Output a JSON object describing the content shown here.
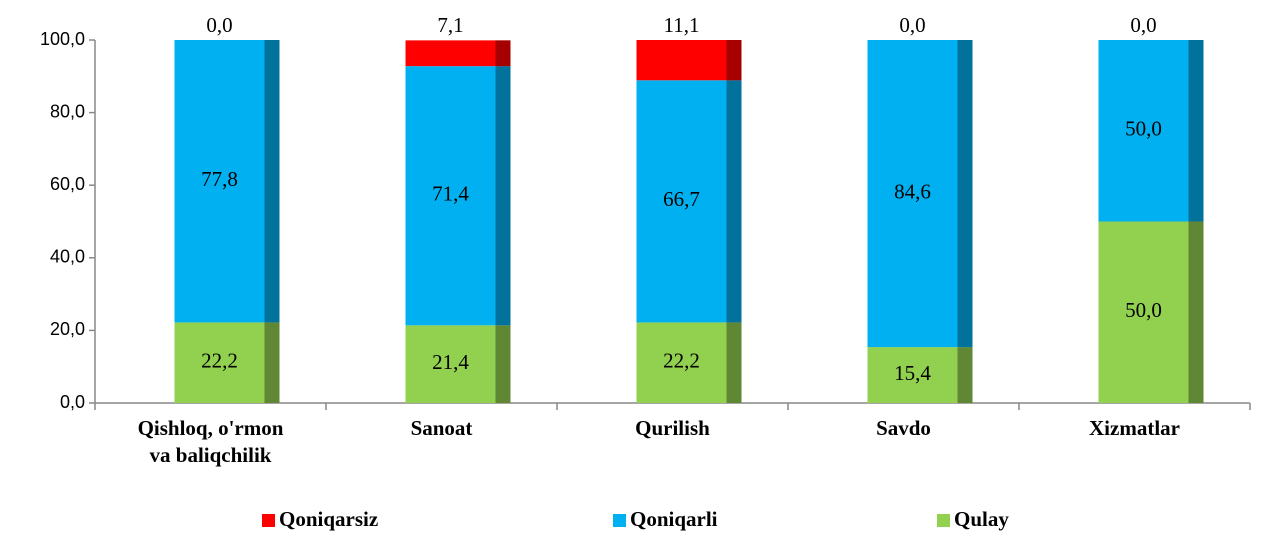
{
  "chart_data": {
    "type": "stacked_bar",
    "categories": [
      "Qishloq, o'rmon\nva baliqchilik",
      "Sanoat",
      "Qurilish",
      "Savdo",
      "Xizmatlar"
    ],
    "series": [
      {
        "name": "Qoniqarsiz",
        "color": "#ff0000",
        "values": [
          0,
          7.1,
          11.1,
          0,
          0
        ],
        "value_labels": [
          "0,0",
          "7,1",
          "11,1",
          "0,0",
          "0,0"
        ]
      },
      {
        "name": "Qoniqarli",
        "color": "#00b0f0",
        "values": [
          77.8,
          71.4,
          66.7,
          84.6,
          50
        ],
        "value_labels": [
          "77,8",
          "71,4",
          "66,7",
          "84,6",
          "50,0"
        ]
      },
      {
        "name": "Qulay",
        "color": "#92d050",
        "values": [
          22.2,
          21.4,
          22.2,
          15.4,
          50
        ],
        "value_labels": [
          "22,2",
          "21,4",
          "22,2",
          "15,4",
          "50,0"
        ]
      }
    ],
    "ylim": [
      0,
      100
    ],
    "yticks": [
      {
        "value": 0,
        "label": "0,0"
      },
      {
        "value": 20,
        "label": "20,0"
      },
      {
        "value": 40,
        "label": "40,0"
      },
      {
        "value": 60,
        "label": "60,0"
      },
      {
        "value": 80,
        "label": "80,0"
      },
      {
        "value": 100,
        "label": "100,0"
      }
    ],
    "legend": "bottom"
  }
}
